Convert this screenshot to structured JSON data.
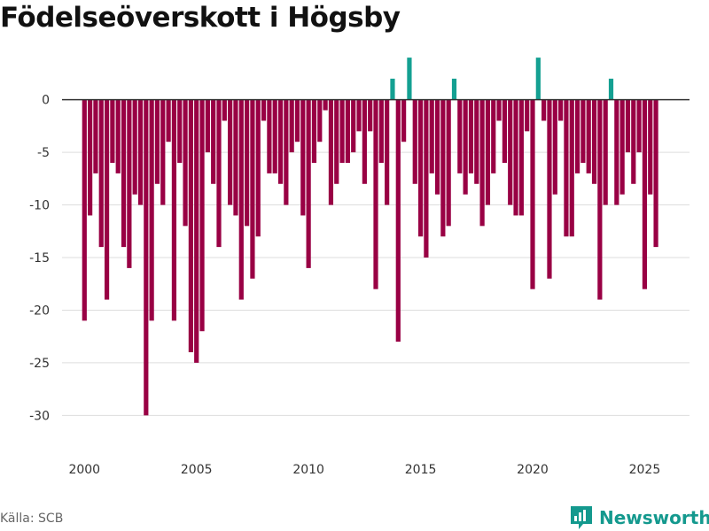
{
  "title": "Födelseöverskott i Högsby",
  "source": "Källa: SCB",
  "brand": {
    "name": "Newsworthy",
    "icon": "newsworthy-logo-icon"
  },
  "colors": {
    "negative": "#990044",
    "positive": "#14a092",
    "grid": "#dddddd",
    "zero_line": "#333333",
    "axis_text": "#333333",
    "title": "#111111",
    "brand": "#14998e"
  },
  "chart_data": {
    "type": "bar",
    "title": "Födelseöverskott i Högsby",
    "xlabel": "",
    "ylabel": "",
    "unit": "quarter",
    "start": {
      "year": 2000,
      "quarter": 1
    },
    "xlim": [
      1999.0,
      2027.0
    ],
    "ylim": [
      -33,
      3
    ],
    "x_ticks": [
      2000,
      2005,
      2010,
      2015,
      2020,
      2025
    ],
    "y_ticks": [
      0,
      -5,
      -10,
      -15,
      -20,
      -25,
      -30
    ],
    "y_tick_labels": [
      "0",
      "-5",
      "-10",
      "-15",
      "-20",
      "-25",
      "-30"
    ],
    "grid": true,
    "legend": "none",
    "values": [
      -21,
      -11,
      -7,
      -14,
      -19,
      -6,
      -7,
      -14,
      -16,
      -9,
      -10,
      -30,
      -21,
      -8,
      -10,
      -4,
      -21,
      -6,
      -12,
      -24,
      -25,
      -22,
      -5,
      -8,
      -14,
      -2,
      -10,
      -11,
      -19,
      -12,
      -17,
      -13,
      -2,
      -7,
      -7,
      -8,
      -10,
      -5,
      -4,
      -11,
      -16,
      -6,
      -4,
      -1,
      -10,
      -8,
      -6,
      -6,
      -5,
      -3,
      -8,
      -3,
      -18,
      -6,
      -10,
      2,
      -23,
      -4,
      4,
      -8,
      -13,
      -15,
      -7,
      -9,
      -13,
      -12,
      2,
      -7,
      -9,
      -7,
      -8,
      -12,
      -10,
      -7,
      -2,
      -6,
      -10,
      -11,
      -11,
      -3,
      -18,
      4,
      -2,
      -17,
      -9,
      -2,
      -13,
      -13,
      -7,
      -6,
      -7,
      -8,
      -19,
      -10,
      2,
      -10,
      -9,
      -5,
      -8,
      -5,
      -18,
      -9,
      -14
    ]
  }
}
